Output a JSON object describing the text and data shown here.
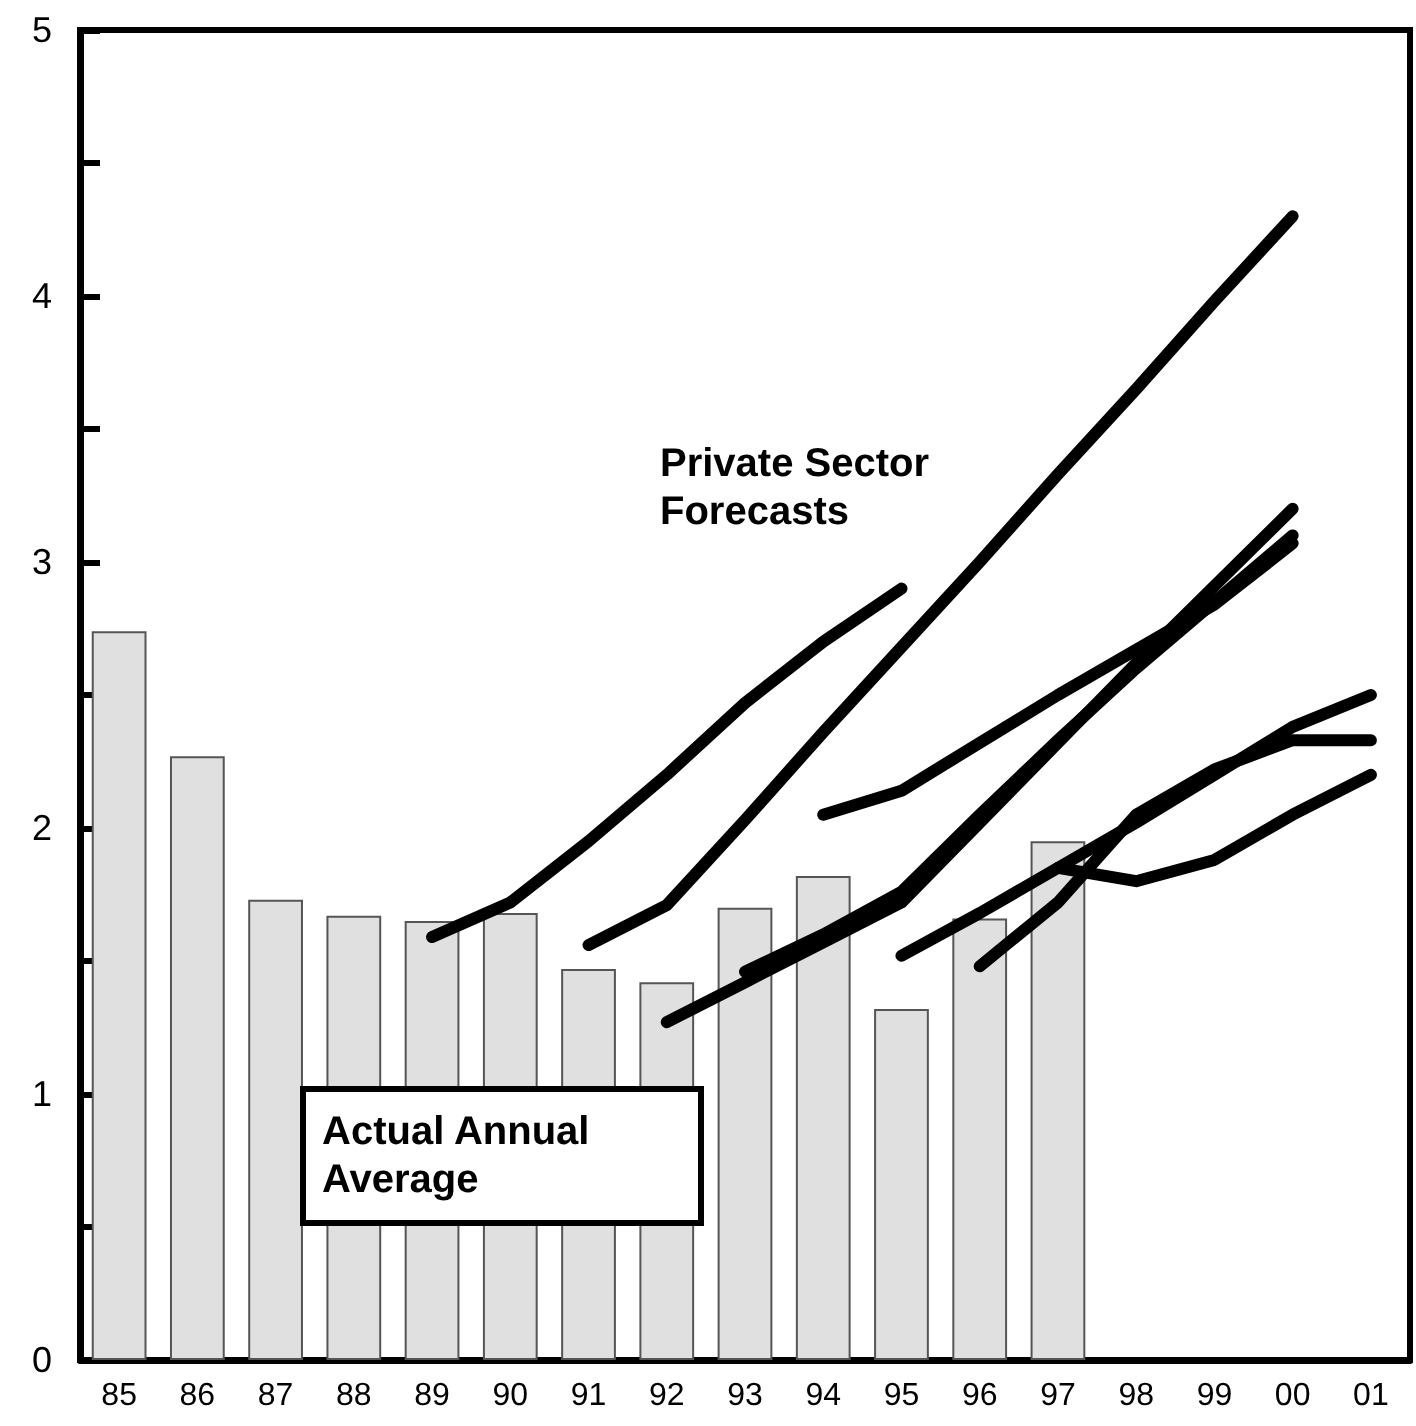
{
  "chart_data": {
    "type": "bar",
    "categories": [
      "85",
      "86",
      "87",
      "88",
      "89",
      "90",
      "91",
      "92",
      "93",
      "94",
      "95",
      "96",
      "97",
      "98",
      "99",
      "00",
      "01"
    ],
    "series": [
      {
        "color": "#e0e0e0",
        "values": [
          2.74,
          2.27,
          1.73,
          1.67,
          1.65,
          1.68,
          1.47,
          1.42,
          1.7,
          1.82,
          1.32,
          1.66,
          1.95,
          null,
          null,
          null,
          null
        ]
      },
      {
        "type": "line",
        "color": "#000000",
        "values": [
          null,
          null,
          null,
          null,
          1.59,
          1.72,
          1.95,
          2.2,
          2.47,
          2.7,
          2.9,
          null,
          null,
          null,
          null,
          null,
          null
        ]
      },
      {
        "type": "line",
        "color": "#000000",
        "values": [
          null,
          null,
          null,
          null,
          null,
          null,
          1.56,
          1.71,
          2.03,
          2.36,
          2.68,
          3.0,
          3.33,
          3.65,
          3.98,
          4.3,
          null
        ]
      },
      {
        "type": "line",
        "color": "#000000",
        "values": [
          null,
          null,
          null,
          null,
          null,
          null,
          null,
          null,
          null,
          2.05,
          2.14,
          2.32,
          2.5,
          2.67,
          2.84,
          3.07,
          null
        ]
      },
      {
        "type": "line",
        "color": "#000000",
        "values": [
          null,
          null,
          null,
          null,
          null,
          null,
          null,
          1.27,
          1.42,
          1.57,
          1.72,
          2.02,
          2.32,
          2.62,
          2.91,
          3.2,
          null
        ]
      },
      {
        "type": "line",
        "color": "#000000",
        "values": [
          null,
          null,
          null,
          null,
          null,
          null,
          null,
          null,
          1.46,
          1.6,
          1.76,
          2.05,
          2.33,
          2.6,
          2.85,
          3.1,
          null
        ]
      },
      {
        "type": "line",
        "color": "#000000",
        "values": [
          null,
          null,
          null,
          null,
          null,
          null,
          null,
          null,
          null,
          null,
          1.52,
          1.68,
          1.85,
          2.02,
          2.2,
          2.38,
          2.5
        ]
      },
      {
        "type": "line",
        "color": "#000000",
        "values": [
          null,
          null,
          null,
          null,
          null,
          null,
          null,
          null,
          null,
          null,
          null,
          1.48,
          1.72,
          2.05,
          2.22,
          2.33,
          2.33
        ]
      },
      {
        "type": "line",
        "color": "#000000",
        "values": [
          null,
          null,
          null,
          null,
          null,
          null,
          null,
          null,
          null,
          null,
          null,
          null,
          1.85,
          1.8,
          1.88,
          2.05,
          2.2
        ]
      }
    ],
    "ylim": [
      0,
      5
    ],
    "yticks": [
      0,
      {
        "value": 0.5,
        "label": null
      },
      1,
      {
        "value": 1.5,
        "label": null
      },
      2,
      {
        "value": 2.5,
        "label": null
      },
      3,
      {
        "value": 3.5,
        "label": null
      },
      4,
      {
        "value": 4.5,
        "label": null
      },
      5
    ],
    "grid": false,
    "marker": "none",
    "line_style": "solid",
    "annotations": [
      "Private Sector Forecasts",
      "Actual Annual Average"
    ]
  }
}
